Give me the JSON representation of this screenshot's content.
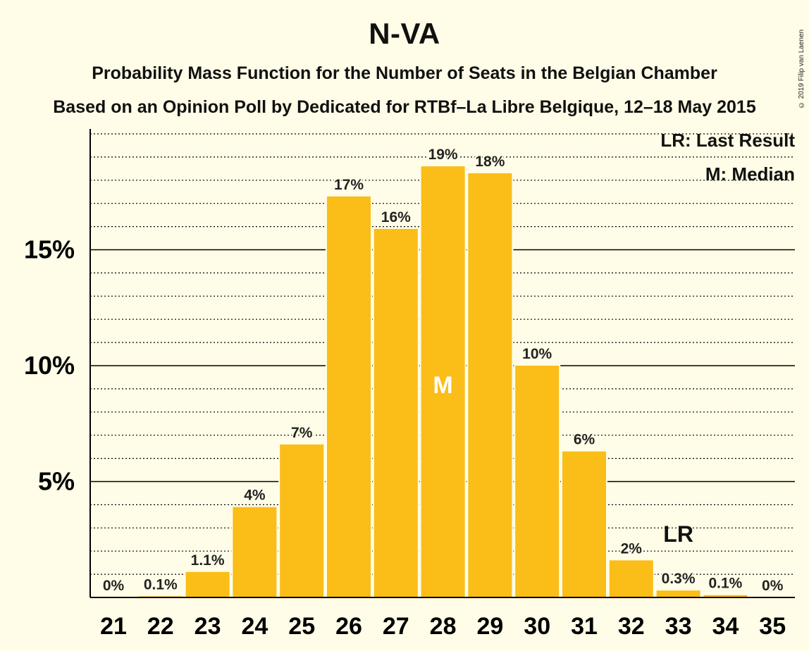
{
  "title": "N-VA",
  "subtitle_1": "Probability Mass Function for the Number of Seats in the Belgian Chamber",
  "subtitle_2": "Based on an Opinion Poll by Dedicated for RTBf–La Libre Belgique, 12–18 May 2015",
  "copyright": "© 2019 Filip van Laenen",
  "legend": {
    "last_result": "LR: Last Result",
    "median": "M: Median"
  },
  "colors": {
    "bar": "#fbbd17",
    "background": "#fffde7",
    "axis": "#000000"
  },
  "chart_data": {
    "type": "bar",
    "categories": [
      "21",
      "22",
      "23",
      "24",
      "25",
      "26",
      "27",
      "28",
      "29",
      "30",
      "31",
      "32",
      "33",
      "34",
      "35"
    ],
    "values": [
      0,
      0.05,
      1.1,
      3.9,
      6.6,
      17.3,
      15.9,
      18.6,
      18.3,
      10.0,
      6.3,
      1.6,
      0.3,
      0.1,
      0
    ],
    "value_labels": [
      "0%",
      "0.1%",
      "1.1%",
      "4%",
      "7%",
      "17%",
      "16%",
      "19%",
      "18%",
      "10%",
      "6%",
      "2%",
      "0.3%",
      "0.1%",
      "0%"
    ],
    "y_ticks": [
      5,
      10,
      15
    ],
    "y_tick_labels": [
      "5%",
      "10%",
      "15%"
    ],
    "ylim": [
      0,
      20.2
    ],
    "minor_grid_step": 1,
    "median_category": "28",
    "median_marker": "M",
    "last_result_category": "33",
    "last_result_marker": "LR",
    "xlabel": "",
    "ylabel": "",
    "grid": true,
    "legend_position": "top-right"
  }
}
